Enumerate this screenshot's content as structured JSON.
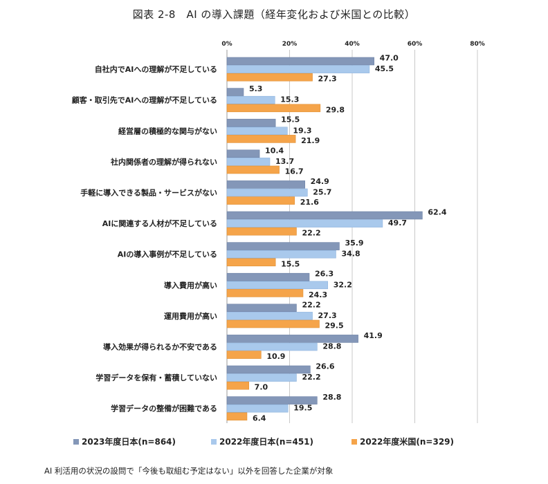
{
  "title": "図表 2-8　AI の導入課題（経年変化および米国との比較）",
  "footnote": "AI 利活用の状況の設問で「今後も取組む予定はない」以外を回答した企業が対象",
  "chart_data": {
    "type": "bar",
    "orientation": "horizontal",
    "title": "図表 2-8　AI の導入課題（経年変化および米国との比較）",
    "xlim": [
      0,
      80
    ],
    "x_ticks": [
      "0%",
      "20%",
      "40%",
      "60%",
      "80%"
    ],
    "x_tick_values": [
      0,
      20,
      40,
      60,
      80
    ],
    "grid": true,
    "legend": "bottom",
    "categories": [
      "自社内でAIへの理解が不足している",
      "顧客・取引先でAIへの理解が不足している",
      "経営層の積極的な関与がない",
      "社内関係者の理解が得られない",
      "手軽に導入できる製品・サービスがない",
      "AIに関連する人材が不足している",
      "AIの導入事例が不足している",
      "導入費用が高い",
      "運用費用が高い",
      "導入効果が得られるか不安である",
      "学習データを保有・蓄積していない",
      "学習データの整備が困難である"
    ],
    "series": [
      {
        "name": "2023年度日本(n=864)",
        "color": "#8497b8",
        "values": [
          47.0,
          5.3,
          15.5,
          10.4,
          24.9,
          62.4,
          35.9,
          26.3,
          22.2,
          41.9,
          26.6,
          28.8
        ],
        "labels": [
          "47.0",
          "5.3",
          "15.5",
          "10.4",
          "24.9",
          "62.4",
          "35.9",
          "26.3",
          "22.2",
          "41.9",
          "26.6",
          "28.8"
        ]
      },
      {
        "name": "2022年度日本(n=451)",
        "color": "#a9c9ec",
        "values": [
          45.5,
          15.3,
          19.3,
          13.7,
          25.7,
          49.7,
          34.8,
          32.2,
          27.3,
          28.8,
          22.2,
          19.5
        ],
        "labels": [
          "45.5",
          "15.3",
          "19.3",
          "13.7",
          "25.7",
          "49.7",
          "34.8",
          "32.2",
          "27.3",
          "28.8",
          "22.2",
          "19.5"
        ]
      },
      {
        "name": "2022年度米国(n=329)",
        "color": "#f5a44a",
        "values": [
          27.3,
          29.8,
          21.9,
          16.7,
          21.6,
          22.2,
          15.5,
          24.3,
          29.5,
          10.9,
          7.0,
          6.4
        ],
        "labels": [
          "27.3",
          "29.8",
          "21.9",
          "16.7",
          "21.6",
          "22.2",
          "15.5",
          "24.3",
          "29.5",
          "10.9",
          "7.0",
          "6.4"
        ]
      }
    ]
  }
}
